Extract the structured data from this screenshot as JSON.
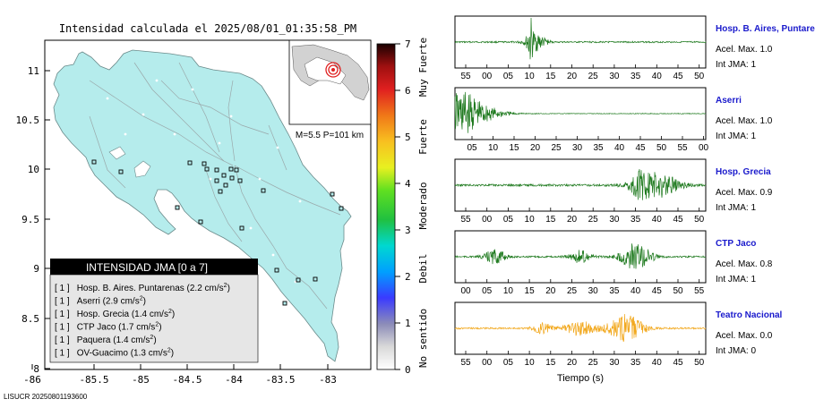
{
  "header": {
    "title": "Intensidad calculada el 2025/08/01_01:35:58_PM",
    "footer_id": "LISUCR 20250801193600"
  },
  "map": {
    "x_ticks": [
      "-86",
      "-85.5",
      "-85",
      "-84.5",
      "-84",
      "-83.5",
      "-83"
    ],
    "y_ticks": [
      "11",
      "10.5",
      "10",
      "9.5",
      "9",
      "8.5",
      "8"
    ],
    "inset_caption": "M=5.5 P=101 km",
    "colors": {
      "land": "#b5ecec",
      "station_fill": "#b5ecec",
      "legend_header_bg": "#000000",
      "legend_body_bg": "#e6e6e6"
    }
  },
  "legend": {
    "title": "INTENSIDAD JMA [0 a 7]",
    "entries": [
      {
        "level": "[ 1 ]",
        "name": "Hosp. B. Aires. Puntarenas (2.2 cm/s",
        "sup": "2",
        "close": ")"
      },
      {
        "level": "[ 1 ]",
        "name": "Aserri (2.9 cm/s",
        "sup": "2",
        "close": ")"
      },
      {
        "level": "[ 1 ]",
        "name": "Hosp. Grecia (1.4 cm/s",
        "sup": "2",
        "close": ")"
      },
      {
        "level": "[ 1 ]",
        "name": "CTP Jaco (1.7 cm/s",
        "sup": "2",
        "close": ")"
      },
      {
        "level": "[ 1 ]",
        "name": "Paquera (1.4 cm/s",
        "sup": "2",
        "close": ")"
      },
      {
        "level": "[ 1 ]",
        "name": "OV-Guacimo (1.3 cm/s",
        "sup": "2",
        "close": ")"
      }
    ]
  },
  "colorbar": {
    "ticks": [
      "7",
      "6",
      "5",
      "4",
      "3",
      "2",
      "1",
      "0"
    ],
    "category_labels": [
      "Muy Fuerte",
      "Fuerte",
      "Moderado",
      "Debil",
      "No sentido"
    ]
  },
  "chart_data": {
    "type": "line",
    "xlabel": "Tiempo (s)",
    "panels": [
      {
        "station": "Hosp. B. Aires, Puntare",
        "acel": "Acel. Max. 1.0",
        "int": "Int JMA: 1",
        "color": "#1f7a1f",
        "ticks": [
          "55",
          "00",
          "05",
          "10",
          "15",
          "20",
          "25",
          "30",
          "35",
          "40",
          "45",
          "50"
        ],
        "amplitude": 1.0
      },
      {
        "station": "Aserri",
        "acel": "Acel. Max. 1.0",
        "int": "Int JMA: 1",
        "color": "#1f7a1f",
        "ticks": [
          "05",
          "10",
          "15",
          "20",
          "25",
          "30",
          "35",
          "40",
          "45",
          "50",
          "55",
          "00"
        ],
        "amplitude": 1.0
      },
      {
        "station": "Hosp. Grecia",
        "acel": "Acel. Max. 0.9",
        "int": "Int JMA: 1",
        "color": "#1f7a1f",
        "ticks": [
          "55",
          "00",
          "05",
          "10",
          "15",
          "20",
          "25",
          "30",
          "35",
          "40",
          "45",
          "50"
        ],
        "amplitude": 0.9
      },
      {
        "station": "CTP Jaco",
        "acel": "Acel. Max. 0.8",
        "int": "Int JMA: 1",
        "color": "#1f7a1f",
        "ticks": [
          "00",
          "05",
          "10",
          "15",
          "20",
          "25",
          "30",
          "35",
          "40",
          "45",
          "50",
          "55"
        ],
        "amplitude": 0.8
      },
      {
        "station": "Teatro Nacional",
        "acel": "Acel. Max. 0.0",
        "int": "Int JMA: 0",
        "color": "#f2a81d",
        "ticks": [
          "55",
          "00",
          "05",
          "10",
          "15",
          "20",
          "25",
          "30",
          "35",
          "40",
          "45",
          "50"
        ],
        "amplitude": 0.0
      }
    ]
  }
}
